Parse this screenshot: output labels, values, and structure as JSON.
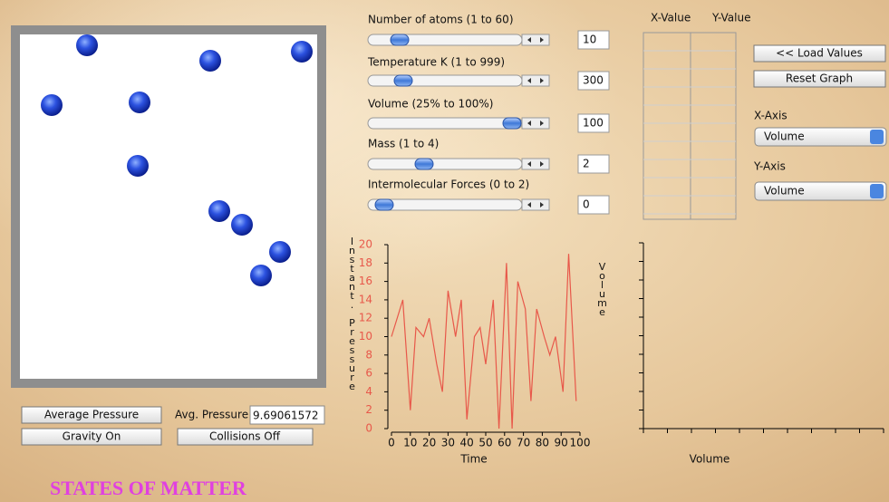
{
  "sliders": [
    {
      "label": "Number of atoms (1 to 60)",
      "value": 10
    },
    {
      "label": "Temperature K (1 to 999)",
      "value": 300
    },
    {
      "label": "Volume (25% to 100%)",
      "value": 100
    },
    {
      "label": "Mass (1 to 4)",
      "value": 2
    },
    {
      "label": "Intermolecular Forces (0 to 2)",
      "value": 0
    }
  ],
  "simulation": {
    "buttons": [
      "Average Pressure",
      "Gravity On",
      "Collisions Off"
    ],
    "avg_pressure_label": "Avg. Pressure",
    "avg_pressure_value": "9.69061572"
  },
  "title": "STATES OF MATTER",
  "table": {
    "headers": [
      "X-Value",
      "Y-Value"
    ]
  },
  "graph_controls": {
    "buttons": [
      "<< Load Values",
      "Reset Graph"
    ],
    "x_axis_label": "X-Axis",
    "x_axis_selected": "Volume",
    "y_axis_label": "Y-Axis",
    "y_axis_selected": "Volume"
  },
  "pressure_chart": {
    "type": "line",
    "x_label": "Time",
    "y_label": "Instant. Pressure",
    "y2_label": "Volume",
    "color": "#e8584a",
    "tick_label_color": "#e8584a",
    "x": [
      0,
      6,
      10,
      13,
      17,
      20,
      24,
      27,
      30,
      34,
      37,
      40,
      44,
      47,
      50,
      54,
      57,
      61,
      64,
      67,
      71,
      74,
      77,
      81,
      84,
      87,
      91,
      94,
      98
    ],
    "values": [
      10,
      14,
      2,
      11,
      10,
      12,
      7,
      4,
      15,
      10,
      14,
      1,
      10,
      11,
      7,
      14,
      0,
      18,
      0,
      16,
      13,
      3,
      13,
      10,
      8,
      10,
      4,
      19,
      3
    ],
    "xlim": [
      0,
      100
    ],
    "xticks": [
      0,
      10,
      20,
      30,
      40,
      50,
      60,
      70,
      80,
      90,
      100
    ],
    "ylim": [
      0,
      20
    ],
    "yticks": [
      0,
      2,
      4,
      6,
      8,
      10,
      12,
      14,
      16,
      18,
      20
    ]
  },
  "user_chart": {
    "x_label": "Volume"
  }
}
